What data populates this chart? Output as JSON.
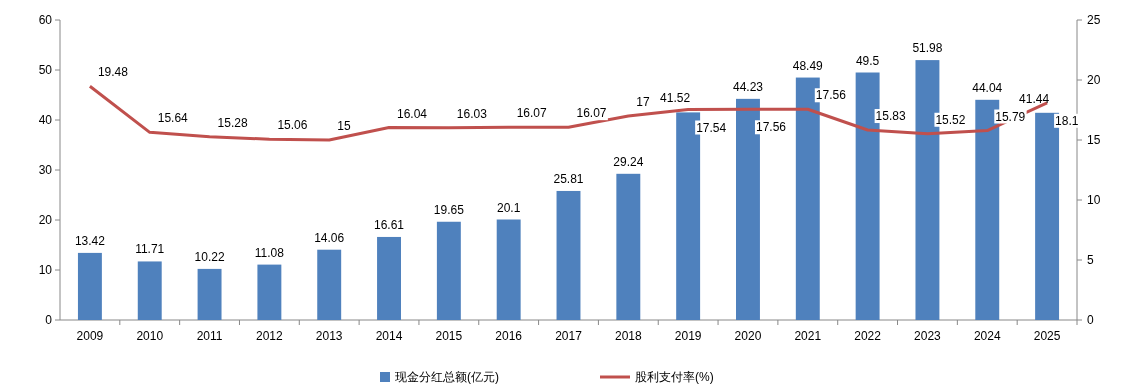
{
  "chart_data": {
    "type": "bar",
    "categories": [
      "2009",
      "2010",
      "2011",
      "2012",
      "2013",
      "2014",
      "2015",
      "2016",
      "2017",
      "2018",
      "2019",
      "2020",
      "2021",
      "2022",
      "2023",
      "2024",
      "2025"
    ],
    "series": [
      {
        "name": "现金分红总额(亿元)",
        "color": "#4f81bd",
        "values": [
          13.42,
          11.71,
          10.22,
          11.08,
          14.06,
          16.61,
          19.65,
          20.1,
          25.81,
          29.24,
          41.52,
          44.23,
          48.49,
          49.5,
          51.98,
          44.04,
          41.44
        ]
      },
      {
        "name": "股利支付率(%)",
        "type": "line",
        "axis": "y2",
        "color": "#c0504d",
        "values": [
          19.48,
          15.64,
          15.28,
          15.06,
          15,
          16.04,
          16.03,
          16.07,
          16.07,
          17,
          17.54,
          17.56,
          17.56,
          15.83,
          15.52,
          15.79,
          18.1
        ]
      }
    ],
    "ylim": [
      0,
      60
    ],
    "yticks": [
      0,
      10,
      20,
      30,
      40,
      50,
      60
    ],
    "y2lim": [
      0,
      25
    ],
    "y2ticks": [
      0,
      5,
      10,
      15,
      20,
      25
    ],
    "data_labels": true,
    "legend": "bottom"
  }
}
